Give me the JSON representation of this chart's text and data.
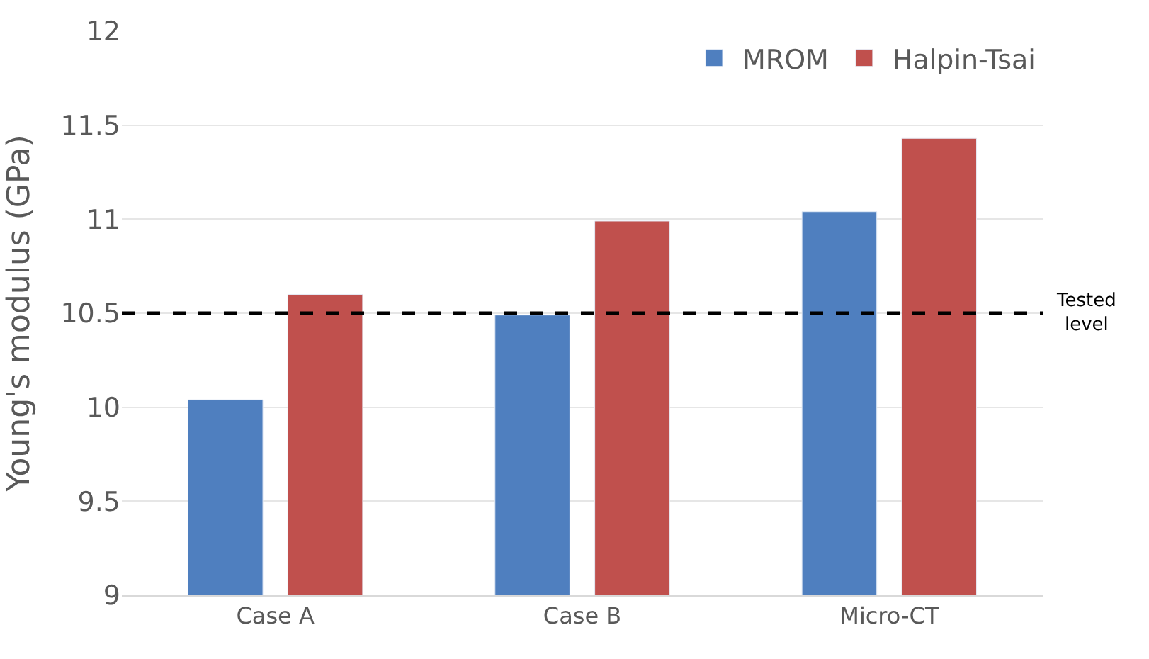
{
  "chart_data": {
    "type": "bar",
    "ylabel": "Young's modulus (GPa)",
    "categories": [
      "Case A",
      "Case B",
      "Micro-CT"
    ],
    "series": [
      {
        "name": "MROM",
        "color": "#4f7fbf",
        "values": [
          10.04,
          10.49,
          11.04
        ]
      },
      {
        "name": "Halpin-Tsai",
        "color": "#c0504d",
        "values": [
          10.6,
          10.99,
          11.43
        ]
      }
    ],
    "ylim": [
      9,
      12
    ],
    "yticks": [
      9,
      9.5,
      10,
      10.5,
      11,
      11.5,
      12
    ],
    "grid": "y",
    "legend": "top right",
    "ref_lines": [
      {
        "axis": "y",
        "value": 10.5,
        "label": "Tested level",
        "color": "#000000",
        "line_style": "dashed"
      }
    ]
  }
}
